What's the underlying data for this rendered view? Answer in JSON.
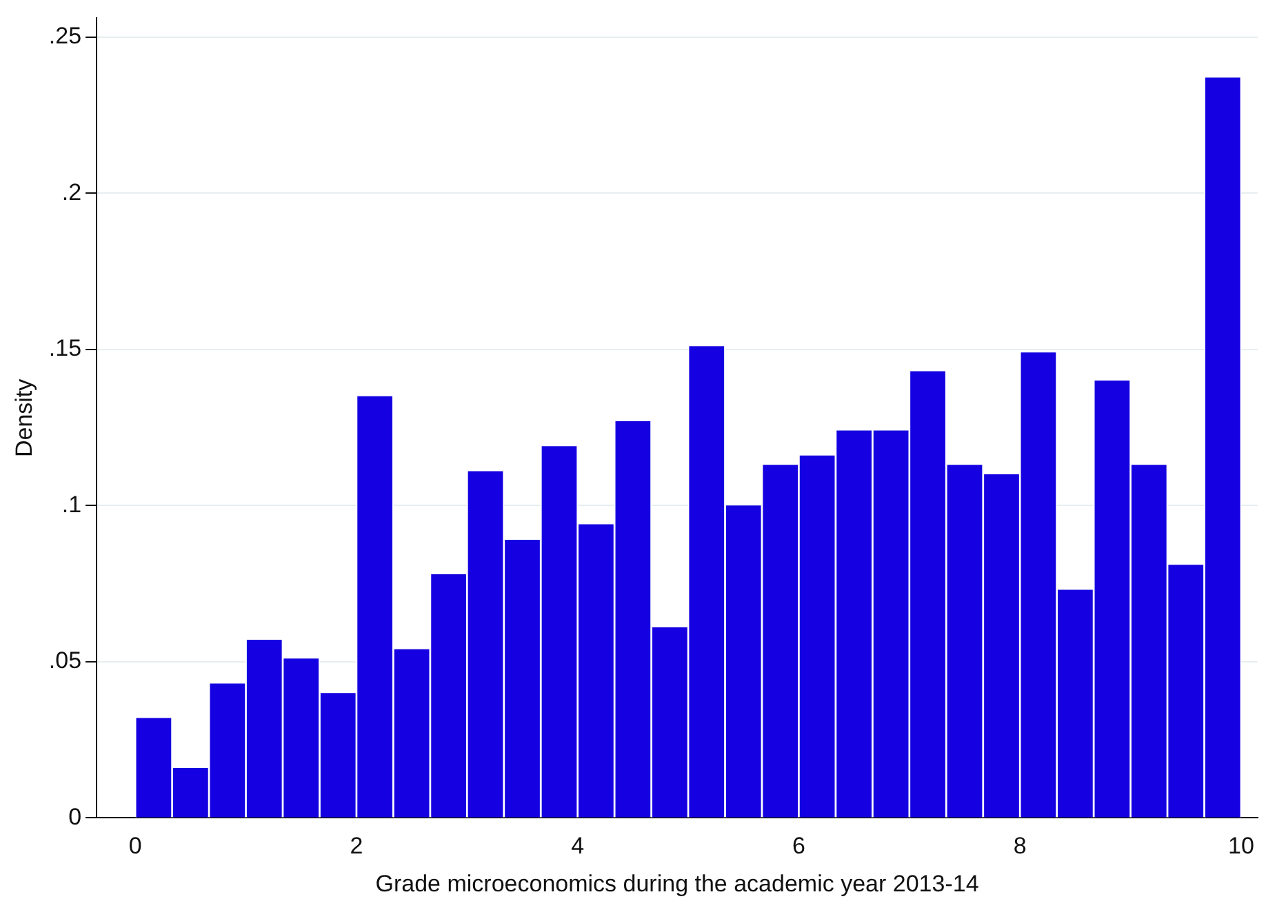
{
  "chart_data": {
    "type": "histogram",
    "xlabel": "Grade microeconomics during the academic year 2013-14",
    "ylabel": "Density",
    "color": "#1400e0",
    "bins": [
      0,
      0.333,
      0.667,
      1,
      1.333,
      1.667,
      2,
      2.333,
      2.667,
      3,
      3.333,
      3.667,
      4,
      4.333,
      4.667,
      5,
      5.333,
      5.667,
      6,
      6.333,
      6.667,
      7,
      7.333,
      7.667,
      8,
      8.333,
      8.667,
      9,
      9.333,
      9.667,
      10
    ],
    "values": [
      0.032,
      0.016,
      0.043,
      0.057,
      0.051,
      0.04,
      0.135,
      0.054,
      0.078,
      0.111,
      0.089,
      0.119,
      0.094,
      0.127,
      0.061,
      0.151,
      0.1,
      0.113,
      0.116,
      0.124,
      0.124,
      0.143,
      0.113,
      0.11,
      0.149,
      0.073,
      0.14,
      0.113,
      0.081,
      0.237
    ],
    "xlim": [
      -0.35,
      10.15
    ],
    "xticks": [
      0,
      2,
      4,
      6,
      8,
      10
    ],
    "ylim": [
      0,
      0.256
    ],
    "yticks": [
      {
        "value": 0,
        "label": "0"
      },
      {
        "value": 0.05,
        "label": ".05"
      },
      {
        "value": 0.1,
        "label": ".1"
      },
      {
        "value": 0.15,
        "label": ".15"
      },
      {
        "value": 0.2,
        "label": ".2"
      },
      {
        "value": 0.25,
        "label": ".25"
      }
    ],
    "grid": "y"
  }
}
